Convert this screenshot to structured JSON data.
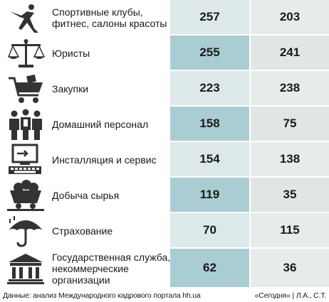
{
  "chart_data": {
    "type": "table",
    "rows": [
      {
        "label": "Спортивные клубы, фитнес, салоны красоты",
        "values": [
          257,
          203
        ],
        "icon": "fitness-figure-icon"
      },
      {
        "label": "Юристы",
        "values": [
          255,
          241
        ],
        "icon": "scales-icon"
      },
      {
        "label": "Закупки",
        "values": [
          223,
          238
        ],
        "icon": "shopping-cart-icon"
      },
      {
        "label": "Домашний персонал",
        "values": [
          158,
          75
        ],
        "icon": "household-staff-icon"
      },
      {
        "label": "Инсталляция и сервис",
        "values": [
          154,
          138
        ],
        "icon": "computer-icon"
      },
      {
        "label": "Добыча сырья",
        "values": [
          119,
          35
        ],
        "icon": "mine-cart-icon"
      },
      {
        "label": "Страхование",
        "values": [
          70,
          115
        ],
        "icon": "umbrella-icon"
      },
      {
        "label": "Государственная служба, некоммерческие организации",
        "values": [
          62,
          36
        ],
        "icon": "government-building-icon"
      }
    ],
    "value_format": "shade of cell background follows row value"
  },
  "colors": {
    "cell_light": "#dde8eb",
    "cell_gray": "#e8ebec",
    "cell_mid": "#a9cdd3",
    "icon": "#333333"
  },
  "footer": {
    "source": "Данные: анализ Международного кадрового портала hh.ua",
    "credit": "«Сегодня» | Л.А., С.Т."
  }
}
